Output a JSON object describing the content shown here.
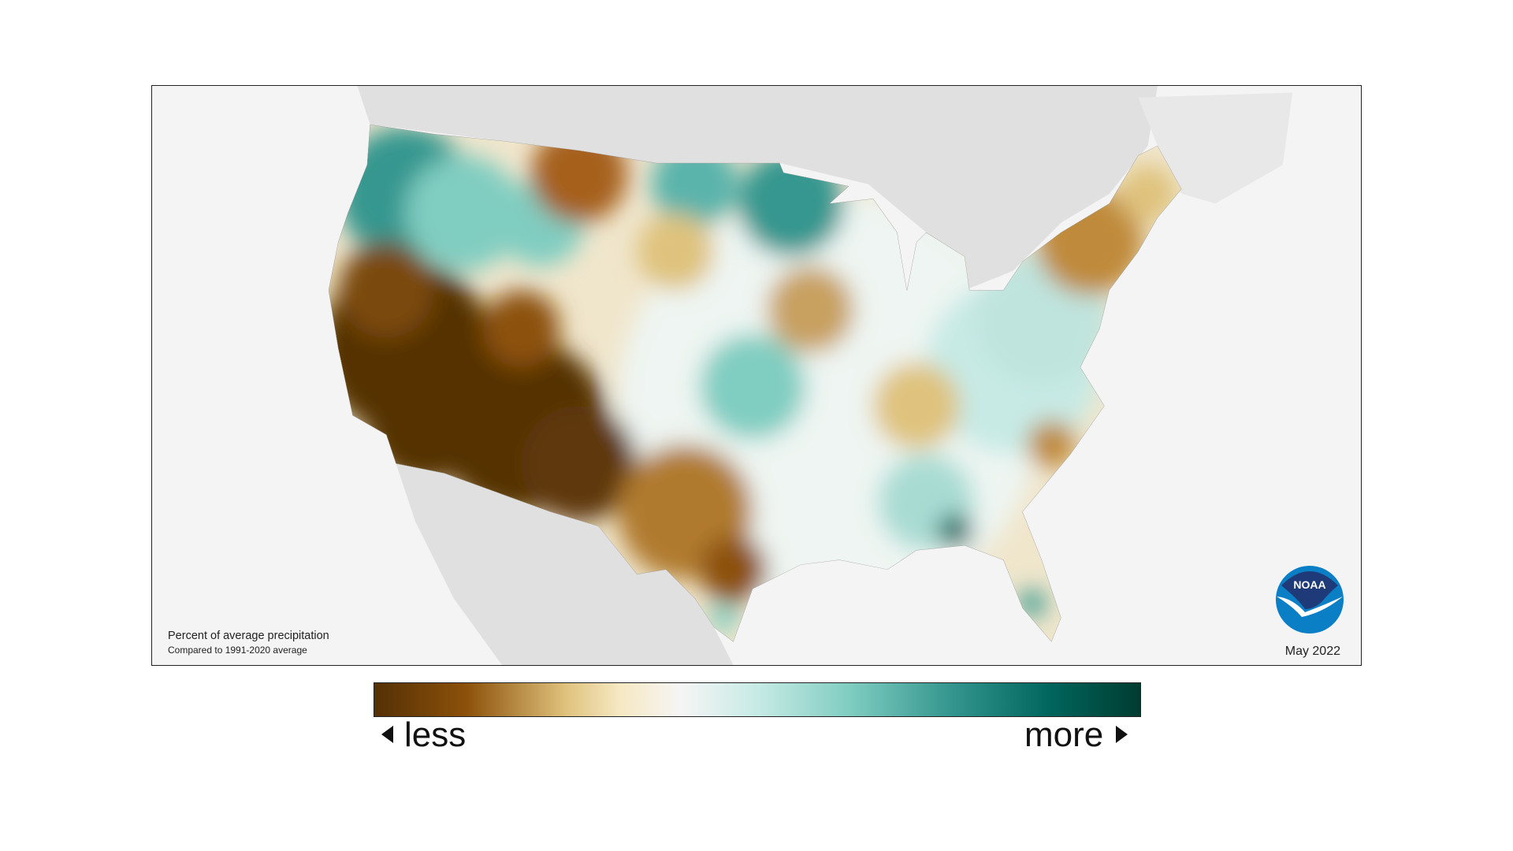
{
  "legend": {
    "title": "Percent of average precipitation",
    "subtitle": "Compared to 1991-2020 average",
    "less_label": "less",
    "more_label": "more",
    "less_icon": "triangle-left-icon",
    "more_icon": "triangle-right-icon"
  },
  "date": "May 2022",
  "logo": {
    "text": "NOAA",
    "dark_color": "#1f3a78",
    "light_color": "#0a7fc6"
  },
  "color_scale": [
    "#543005",
    "#8c510a",
    "#dfc27d",
    "#f6e8c3",
    "#f5f5f5",
    "#c7eae5",
    "#80cdc1",
    "#35978f",
    "#01665e",
    "#003c30"
  ]
}
